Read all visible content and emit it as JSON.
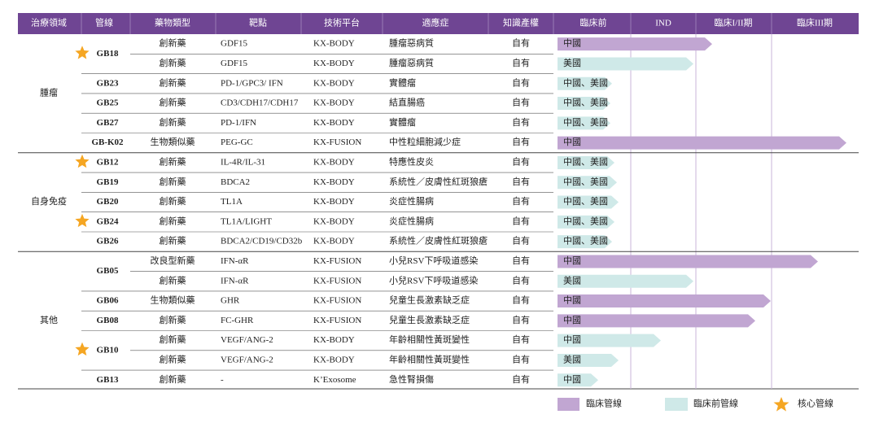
{
  "table": {
    "headers": [
      "治療領域",
      "管線",
      "藥物類型",
      "靶點",
      "技術平台",
      "適應症",
      "知識產權",
      "臨床前",
      "IND",
      "臨床I/II期",
      "臨床III期"
    ],
    "groups": [
      {
        "area": "腫瘤",
        "pipelines": [
          {
            "name": "GB18",
            "rows": [
              [
                "創新藥",
                "GDF15",
                "KX-BODY",
                "腫瘤惡病質",
                "自有",
                "中國"
              ],
              [
                "創新藥",
                "GDF15",
                "KX-BODY",
                "腫瘤惡病質",
                "自有",
                "美國"
              ]
            ]
          },
          {
            "name": "GB23",
            "rows": [
              [
                "創新藥",
                "PD-1/GPC3/ IFN",
                "KX-BODY",
                "實體瘤",
                "自有",
                "中國、美國"
              ]
            ]
          },
          {
            "name": "GB25",
            "rows": [
              [
                "創新藥",
                "CD3/CDH17/CDH17",
                "KX-BODY",
                "結直腸癌",
                "自有",
                "中國、美國"
              ]
            ]
          },
          {
            "name": "GB27",
            "rows": [
              [
                "創新藥",
                "PD-1/IFN",
                "KX-BODY",
                "實體瘤",
                "自有",
                "中國、美國"
              ]
            ]
          },
          {
            "name": "GB-K02",
            "rows": [
              [
                "生物類似藥",
                "PEG-GC",
                "KX-FUSION",
                "中性粒細胞減少症",
                "自有",
                "中國"
              ]
            ]
          }
        ]
      },
      {
        "area": "自身免疫",
        "pipelines": [
          {
            "name": "GB12",
            "rows": [
              [
                "創新藥",
                "IL-4R/IL-31",
                "KX-BODY",
                "特應性皮炎",
                "自有",
                "中國、美國"
              ]
            ]
          },
          {
            "name": "GB19",
            "rows": [
              [
                "創新藥",
                "BDCA2",
                "KX-BODY",
                "系統性／皮膚性紅斑狼瘡",
                "自有",
                "中國、美國"
              ]
            ]
          },
          {
            "name": "GB20",
            "rows": [
              [
                "創新藥",
                "TL1A",
                "KX-BODY",
                "炎症性腸病",
                "自有",
                "中國、美國"
              ]
            ]
          },
          {
            "name": "GB24",
            "rows": [
              [
                "創新藥",
                "TL1A/LIGHT",
                "KX-BODY",
                "炎症性腸病",
                "自有",
                "中國、美國"
              ]
            ]
          },
          {
            "name": "GB26",
            "rows": [
              [
                "創新藥",
                "BDCA2/CD19/CD32b",
                "KX-BODY",
                "系統性／皮膚性紅斑狼瘡",
                "自有",
                "中國、美國"
              ]
            ]
          }
        ]
      },
      {
        "area": "其他",
        "pipelines": [
          {
            "name": "GB05",
            "rows": [
              [
                "改良型新藥",
                "IFN-αR",
                "KX-FUSION",
                "小兒RSV下呼吸道感染",
                "自有",
                "中國"
              ],
              [
                "創新藥",
                "IFN-αR",
                "KX-FUSION",
                "小兒RSV下呼吸道感染",
                "自有",
                "美國"
              ]
            ]
          },
          {
            "name": "GB06",
            "rows": [
              [
                "生物類似藥",
                "GHR",
                "KX-FUSION",
                "兒童生長激素缺乏症",
                "自有",
                "中國"
              ]
            ]
          },
          {
            "name": "GB08",
            "rows": [
              [
                "創新藥",
                "FC-GHR",
                "KX-FUSION",
                "兒童生長激素缺乏症",
                "自有",
                "中國"
              ]
            ]
          },
          {
            "name": "GB10",
            "rows": [
              [
                "創新藥",
                "VEGF/ANG-2",
                "KX-BODY",
                "年齡相關性黃斑變性",
                "自有",
                "中國"
              ],
              [
                "創新藥",
                "VEGF/ANG-2",
                "KX-BODY",
                "年齡相關性黃斑變性",
                "自有",
                "美國"
              ]
            ]
          },
          {
            "name": "GB13",
            "rows": [
              [
                "創新藥",
                "-",
                "K’Exosome",
                "急性腎損傷",
                "自有",
                "中國"
              ]
            ]
          }
        ]
      }
    ]
  },
  "legend": [
    "臨床管線",
    "臨床前管線",
    "核心管線"
  ]
}
